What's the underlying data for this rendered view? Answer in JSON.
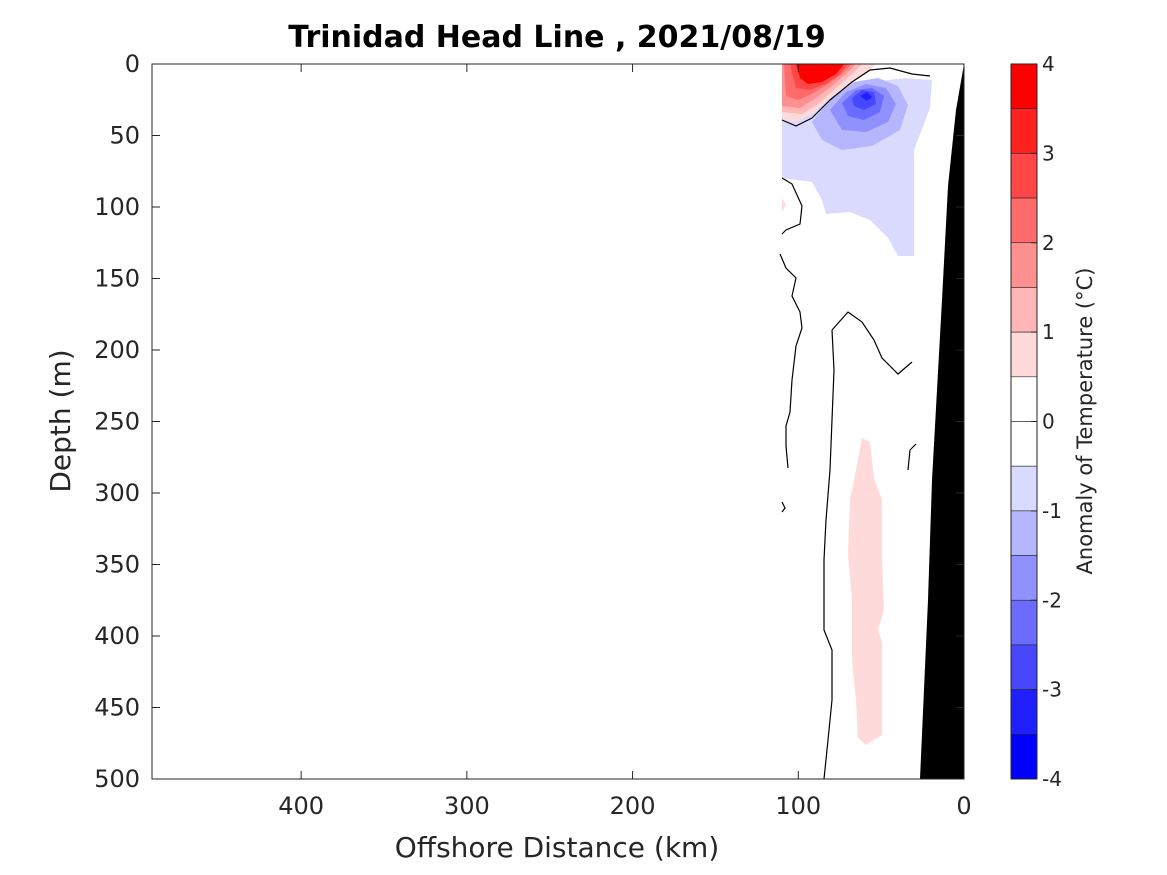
{
  "chart_data": {
    "type": "heatmap",
    "title": "Trinidad Head Line , 2021/08/19",
    "xlabel": "Offshore Distance (km)",
    "ylabel": "Depth (m)",
    "xlim": [
      490,
      0
    ],
    "ylim": [
      0,
      500
    ],
    "x_reversed": true,
    "y_reversed": true,
    "xticks": [
      400,
      300,
      200,
      100,
      0
    ],
    "xtick_labels": [
      "400",
      "300",
      "200",
      "100",
      "0"
    ],
    "yticks": [
      0,
      50,
      100,
      150,
      200,
      250,
      300,
      350,
      400,
      450,
      500
    ],
    "ytick_labels": [
      "0",
      "50",
      "100",
      "150",
      "200",
      "250",
      "300",
      "350",
      "400",
      "450",
      "500"
    ],
    "grid": false,
    "colorbar": {
      "label": "Anomaly of Temperature (°C)",
      "range": [
        -4,
        4
      ],
      "ticks": [
        4,
        3,
        2,
        1,
        0,
        -1,
        -2,
        -3,
        -4
      ],
      "tick_labels": [
        "4",
        "3",
        "2",
        "1",
        "0",
        "-1",
        "-2",
        "-3",
        "-4"
      ],
      "levels": [
        {
          "from": 3.5,
          "to": 4.0,
          "color": "#ff0000"
        },
        {
          "from": 3.0,
          "to": 3.5,
          "color": "#ff2020"
        },
        {
          "from": 2.5,
          "to": 3.0,
          "color": "#ff4747"
        },
        {
          "from": 2.0,
          "to": 2.5,
          "color": "#ff6b6b"
        },
        {
          "from": 1.5,
          "to": 2.0,
          "color": "#ff9090"
        },
        {
          "from": 1.0,
          "to": 1.5,
          "color": "#ffb6b6"
        },
        {
          "from": 0.5,
          "to": 1.0,
          "color": "#ffdada"
        },
        {
          "from": 0.0,
          "to": 0.5,
          "color": "#ffffff"
        },
        {
          "from": -0.5,
          "to": 0.0,
          "color": "#ffffff"
        },
        {
          "from": -1.0,
          "to": -0.5,
          "color": "#dadaff"
        },
        {
          "from": -1.5,
          "to": -1.0,
          "color": "#b6b6ff"
        },
        {
          "from": -2.0,
          "to": -1.5,
          "color": "#9090ff"
        },
        {
          "from": -2.5,
          "to": -2.0,
          "color": "#6b6bff"
        },
        {
          "from": -3.0,
          "to": -2.5,
          "color": "#4747ff"
        },
        {
          "from": -3.5,
          "to": -3.0,
          "color": "#2020ff"
        },
        {
          "from": -4.0,
          "to": -3.5,
          "color": "#0000ff"
        }
      ]
    },
    "features": [
      {
        "name": "warm-core-surface",
        "x_km": 88,
        "depth_m": 5,
        "peak": 3.5
      },
      {
        "name": "cold-core-subsurface",
        "x_km": 60,
        "depth_m": 22,
        "peak": -2.8
      },
      {
        "name": "weak-cold-layer",
        "x_km_range": [
          112,
          30
        ],
        "depth_m_range": [
          35,
          135
        ],
        "value": -0.7
      },
      {
        "name": "weak-warm-tongue",
        "x_km_range": [
          70,
          50
        ],
        "depth_m_range": [
          260,
          475
        ],
        "value": 0.7
      }
    ],
    "bathymetry": {
      "color": "#000000"
    }
  }
}
